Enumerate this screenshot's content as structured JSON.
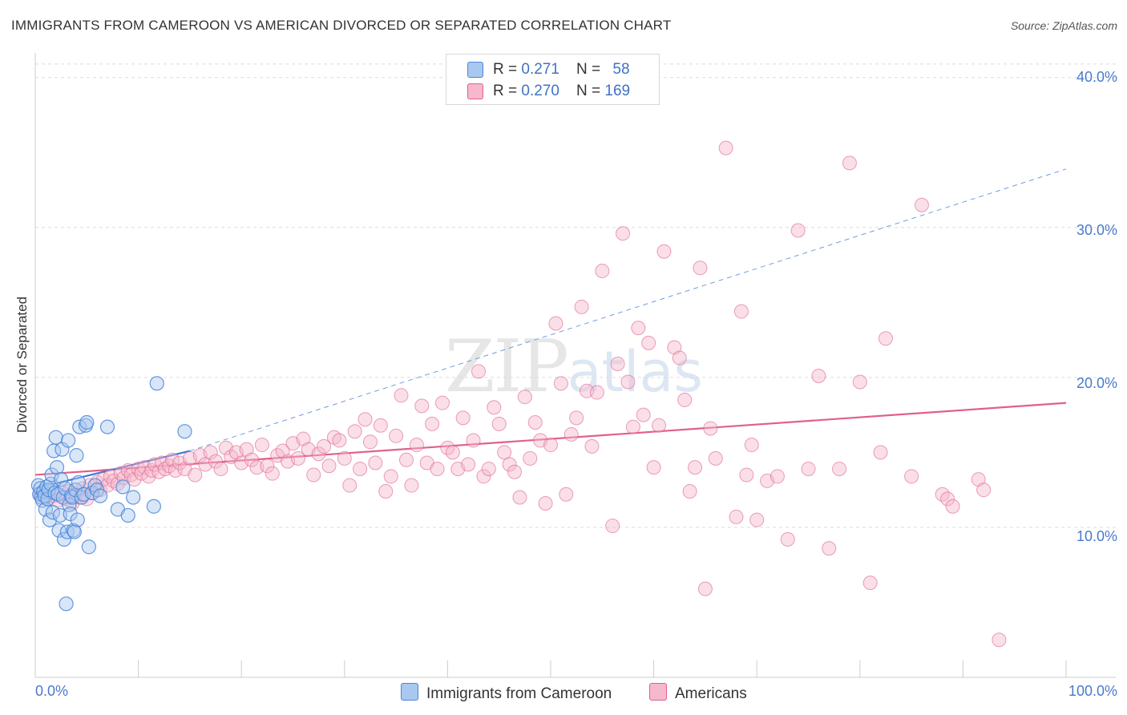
{
  "title": "IMMIGRANTS FROM CAMEROON VS AMERICAN DIVORCED OR SEPARATED CORRELATION CHART",
  "source": "Source: ZipAtlas.com",
  "watermark": {
    "main": "ZIP",
    "sub": "atlas"
  },
  "legend_top": [
    {
      "r_label": "R = ",
      "r_value": "0.271",
      "n_label": "N = ",
      "n_value": "58",
      "color": "#a8c8f0"
    },
    {
      "r_label": "R = ",
      "r_value": "0.270",
      "n_label": "N = ",
      "n_value": "169",
      "color": "#f5b8cc"
    }
  ],
  "chart_data": {
    "type": "scatter",
    "title": "IMMIGRANTS FROM CAMEROON VS AMERICAN DIVORCED OR SEPARATED CORRELATION CHART",
    "xlabel": "",
    "ylabel": "Divorced or Separated",
    "xlim": [
      0,
      100
    ],
    "ylim": [
      0,
      41
    ],
    "x_tick_labels": [
      "0.0%",
      "100.0%"
    ],
    "y_ticks": [
      10,
      20,
      30,
      40
    ],
    "y_tick_labels": [
      "10.0%",
      "20.0%",
      "30.0%",
      "40.0%"
    ],
    "grid": true,
    "legend_position": "bottom-center",
    "series": [
      {
        "name": "Immigrants from Cameroon",
        "color": "#4a86d8",
        "fill": "#a8c8f0",
        "trend": {
          "x": [
            0,
            15
          ],
          "y": [
            12.6,
            15.1
          ],
          "extended": {
            "x": [
              15,
              100
            ],
            "y": [
              15.1,
              33.9
            ]
          }
        },
        "points": [
          [
            0.3,
            12.8
          ],
          [
            0.4,
            12.2
          ],
          [
            0.5,
            12.6
          ],
          [
            0.6,
            12.0
          ],
          [
            0.7,
            11.8
          ],
          [
            0.8,
            12.4
          ],
          [
            0.9,
            12.1
          ],
          [
            1.0,
            11.2
          ],
          [
            1.1,
            12.7
          ],
          [
            1.2,
            11.9
          ],
          [
            1.3,
            12.5
          ],
          [
            1.4,
            10.5
          ],
          [
            1.5,
            12.9
          ],
          [
            1.6,
            13.5
          ],
          [
            1.7,
            11.0
          ],
          [
            1.8,
            15.1
          ],
          [
            1.9,
            12.3
          ],
          [
            2.0,
            16.0
          ],
          [
            2.1,
            14.0
          ],
          [
            2.2,
            12.2
          ],
          [
            2.3,
            9.8
          ],
          [
            2.4,
            10.8
          ],
          [
            2.5,
            13.2
          ],
          [
            2.6,
            15.2
          ],
          [
            2.7,
            12.0
          ],
          [
            2.8,
            9.2
          ],
          [
            2.9,
            12.6
          ],
          [
            3.0,
            4.9
          ],
          [
            3.1,
            9.7
          ],
          [
            3.2,
            15.8
          ],
          [
            3.3,
            11.5
          ],
          [
            3.4,
            10.9
          ],
          [
            3.5,
            12.1
          ],
          [
            3.6,
            12.0
          ],
          [
            3.7,
            9.8
          ],
          [
            3.8,
            9.7
          ],
          [
            3.9,
            12.5
          ],
          [
            4.0,
            14.8
          ],
          [
            4.1,
            10.5
          ],
          [
            4.2,
            13.0
          ],
          [
            4.3,
            16.7
          ],
          [
            4.5,
            12.0
          ],
          [
            4.7,
            12.2
          ],
          [
            4.9,
            16.8
          ],
          [
            5.0,
            17.0
          ],
          [
            5.2,
            8.7
          ],
          [
            5.5,
            12.3
          ],
          [
            5.8,
            12.8
          ],
          [
            6.0,
            12.5
          ],
          [
            6.3,
            12.1
          ],
          [
            7.0,
            16.7
          ],
          [
            8.0,
            11.2
          ],
          [
            8.5,
            12.7
          ],
          [
            9.0,
            10.8
          ],
          [
            9.5,
            12.0
          ],
          [
            11.5,
            11.4
          ],
          [
            11.8,
            19.6
          ],
          [
            14.5,
            16.4
          ]
        ]
      },
      {
        "name": "Americans",
        "color": "#e0608c",
        "fill": "#f5b8cc",
        "trend": {
          "x": [
            0,
            100
          ],
          "y": [
            13.5,
            18.3
          ]
        },
        "points": [
          [
            0.5,
            12.2
          ],
          [
            1.0,
            12.0
          ],
          [
            1.3,
            12.5
          ],
          [
            1.8,
            12.1
          ],
          [
            2.2,
            11.8
          ],
          [
            2.6,
            12.3
          ],
          [
            3.0,
            11.9
          ],
          [
            3.3,
            12.4
          ],
          [
            3.6,
            11.6
          ],
          [
            4.0,
            12.2
          ],
          [
            4.3,
            12.0
          ],
          [
            4.6,
            12.6
          ],
          [
            5.0,
            11.9
          ],
          [
            5.3,
            12.8
          ],
          [
            5.6,
            12.3
          ],
          [
            6.0,
            13.0
          ],
          [
            6.3,
            12.5
          ],
          [
            6.6,
            13.2
          ],
          [
            7.0,
            12.8
          ],
          [
            7.3,
            13.4
          ],
          [
            7.6,
            13.1
          ],
          [
            8.0,
            12.9
          ],
          [
            8.3,
            13.6
          ],
          [
            8.6,
            13.3
          ],
          [
            9.0,
            13.8
          ],
          [
            9.3,
            13.5
          ],
          [
            9.6,
            13.2
          ],
          [
            10.0,
            13.9
          ],
          [
            10.3,
            13.6
          ],
          [
            10.6,
            14.0
          ],
          [
            11.0,
            13.4
          ],
          [
            11.3,
            13.8
          ],
          [
            11.6,
            14.2
          ],
          [
            12.0,
            13.7
          ],
          [
            12.3,
            14.3
          ],
          [
            12.6,
            13.9
          ],
          [
            13.0,
            14.1
          ],
          [
            13.3,
            14.5
          ],
          [
            13.6,
            13.8
          ],
          [
            14.0,
            14.3
          ],
          [
            14.5,
            13.9
          ],
          [
            15.0,
            14.6
          ],
          [
            15.5,
            13.5
          ],
          [
            16.0,
            14.8
          ],
          [
            16.5,
            14.2
          ],
          [
            17.0,
            15.0
          ],
          [
            17.5,
            14.4
          ],
          [
            18.0,
            13.9
          ],
          [
            18.5,
            15.3
          ],
          [
            19.0,
            14.7
          ],
          [
            19.5,
            15.0
          ],
          [
            20.0,
            14.3
          ],
          [
            20.5,
            15.2
          ],
          [
            21.0,
            14.5
          ],
          [
            21.5,
            14.0
          ],
          [
            22.0,
            15.5
          ],
          [
            22.5,
            14.1
          ],
          [
            23.0,
            13.6
          ],
          [
            23.5,
            14.8
          ],
          [
            24.0,
            15.1
          ],
          [
            24.5,
            14.4
          ],
          [
            25.0,
            15.6
          ],
          [
            25.5,
            14.6
          ],
          [
            26.0,
            15.9
          ],
          [
            26.5,
            15.2
          ],
          [
            27.0,
            13.5
          ],
          [
            27.5,
            14.9
          ],
          [
            28.0,
            15.4
          ],
          [
            28.5,
            14.1
          ],
          [
            29.0,
            16.0
          ],
          [
            29.5,
            15.8
          ],
          [
            30.0,
            14.6
          ],
          [
            30.5,
            12.8
          ],
          [
            31.0,
            16.4
          ],
          [
            31.5,
            13.9
          ],
          [
            32.0,
            17.2
          ],
          [
            32.5,
            15.7
          ],
          [
            33.0,
            14.3
          ],
          [
            33.5,
            16.8
          ],
          [
            34.0,
            12.4
          ],
          [
            34.5,
            13.4
          ],
          [
            35.0,
            16.1
          ],
          [
            35.5,
            18.8
          ],
          [
            36.0,
            14.5
          ],
          [
            36.5,
            12.8
          ],
          [
            37.0,
            15.5
          ],
          [
            37.5,
            18.1
          ],
          [
            38.0,
            14.3
          ],
          [
            38.5,
            16.9
          ],
          [
            39.0,
            13.9
          ],
          [
            39.5,
            18.3
          ],
          [
            40.0,
            15.3
          ],
          [
            40.5,
            15.0
          ],
          [
            41.0,
            13.9
          ],
          [
            41.5,
            17.3
          ],
          [
            42.0,
            14.2
          ],
          [
            42.5,
            15.8
          ],
          [
            43.0,
            20.4
          ],
          [
            43.5,
            13.4
          ],
          [
            44.0,
            13.9
          ],
          [
            44.5,
            18.0
          ],
          [
            45.0,
            16.9
          ],
          [
            45.5,
            15.0
          ],
          [
            46.0,
            14.2
          ],
          [
            46.5,
            13.7
          ],
          [
            47.0,
            12.0
          ],
          [
            47.5,
            18.7
          ],
          [
            48.0,
            14.6
          ],
          [
            48.5,
            17.0
          ],
          [
            49.0,
            15.8
          ],
          [
            49.5,
            11.6
          ],
          [
            50.0,
            15.5
          ],
          [
            50.5,
            23.6
          ],
          [
            51.0,
            19.6
          ],
          [
            51.5,
            12.2
          ],
          [
            52.0,
            16.2
          ],
          [
            52.5,
            17.3
          ],
          [
            53.0,
            24.7
          ],
          [
            53.5,
            19.1
          ],
          [
            54.0,
            15.4
          ],
          [
            54.5,
            19.0
          ],
          [
            55.0,
            27.1
          ],
          [
            56.0,
            10.1
          ],
          [
            56.5,
            20.9
          ],
          [
            57.0,
            29.6
          ],
          [
            57.5,
            19.7
          ],
          [
            58.0,
            16.7
          ],
          [
            58.5,
            23.3
          ],
          [
            59.0,
            17.5
          ],
          [
            59.5,
            22.3
          ],
          [
            60.0,
            14.0
          ],
          [
            60.5,
            16.8
          ],
          [
            61.0,
            28.4
          ],
          [
            62.0,
            22.0
          ],
          [
            62.5,
            21.3
          ],
          [
            63.0,
            18.5
          ],
          [
            63.5,
            12.4
          ],
          [
            64.0,
            14.0
          ],
          [
            64.5,
            27.3
          ],
          [
            65.0,
            5.9
          ],
          [
            65.5,
            16.6
          ],
          [
            66.0,
            14.6
          ],
          [
            67.0,
            35.3
          ],
          [
            68.0,
            10.7
          ],
          [
            68.5,
            24.4
          ],
          [
            69.0,
            13.5
          ],
          [
            69.5,
            15.5
          ],
          [
            70.0,
            10.5
          ],
          [
            71.0,
            13.1
          ],
          [
            72.0,
            13.4
          ],
          [
            73.0,
            9.2
          ],
          [
            74.0,
            29.8
          ],
          [
            75.0,
            13.9
          ],
          [
            76.0,
            20.1
          ],
          [
            77.0,
            8.6
          ],
          [
            78.0,
            13.9
          ],
          [
            79.0,
            34.3
          ],
          [
            80.0,
            19.7
          ],
          [
            81.0,
            6.3
          ],
          [
            82.0,
            15.0
          ],
          [
            82.5,
            22.6
          ],
          [
            85.0,
            13.4
          ],
          [
            86.0,
            31.5
          ],
          [
            88.0,
            12.2
          ],
          [
            88.5,
            11.9
          ],
          [
            89.0,
            11.4
          ],
          [
            91.5,
            13.2
          ],
          [
            92.0,
            12.5
          ],
          [
            93.5,
            2.5
          ]
        ]
      }
    ]
  }
}
